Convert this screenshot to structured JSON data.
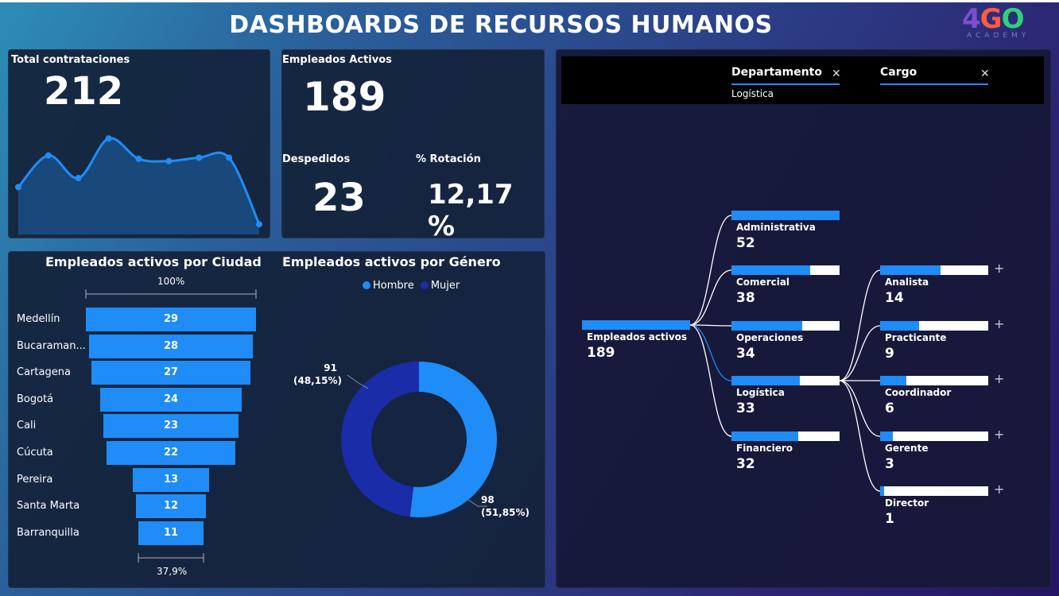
{
  "header": {
    "title": "DASHBOARDS DE RECURSOS HUMANOS",
    "logo_text": "4GO",
    "logo_sub": "ACADEMY"
  },
  "kpi_hires": {
    "label": "Total contrataciones",
    "value": "212"
  },
  "kpi_active": {
    "label": "Empleados Activos",
    "value": "189"
  },
  "kpi_fired": {
    "label": "Despedidos",
    "value": "23"
  },
  "kpi_rotation": {
    "label": "% Rotación",
    "value": "12,17 %"
  },
  "city_chart": {
    "title": "Empleados activos por Ciudad",
    "top_pct": "100%",
    "bottom_pct": "37,9%"
  },
  "gender_chart": {
    "title": "Empleados activos por Género",
    "legend": [
      "Hombre",
      "Mujer"
    ],
    "label_mujer_value": "91",
    "label_mujer_pct": "(48,15%)",
    "label_hombre_value": "98",
    "label_hombre_pct": "(51,85%)"
  },
  "filters": {
    "departamento": {
      "name": "Departamento",
      "value": "Logística"
    },
    "cargo": {
      "name": "Cargo"
    }
  },
  "tree": {
    "root": {
      "name": "Empleados activos",
      "value": "189"
    },
    "departments": [
      {
        "name": "Administrativa",
        "value": "52"
      },
      {
        "name": "Comercial",
        "value": "38"
      },
      {
        "name": "Operaciones",
        "value": "34"
      },
      {
        "name": "Logística",
        "value": "33"
      },
      {
        "name": "Financiero",
        "value": "32"
      }
    ],
    "roles": [
      {
        "name": "Analista",
        "value": "14"
      },
      {
        "name": "Practicante",
        "value": "9"
      },
      {
        "name": "Coordinador",
        "value": "6"
      },
      {
        "name": "Gerente",
        "value": "3"
      },
      {
        "name": "Director",
        "value": "1"
      }
    ]
  },
  "colors": {
    "accent": "#1f8cf8",
    "dark_blue": "#1a2ca8",
    "card_bg": "#14223a"
  },
  "chart_data": [
    {
      "type": "area",
      "x": [
        1,
        2,
        3,
        4,
        5,
        6,
        7,
        8,
        9
      ],
      "values": [
        0.42,
        0.7,
        0.5,
        0.85,
        0.67,
        0.65,
        0.68,
        0.68,
        0.09
      ],
      "title": "",
      "xlabel": "",
      "ylabel": ""
    },
    {
      "type": "bar",
      "title": "Empleados activos por Ciudad",
      "categories": [
        "Medellín",
        "Bucaraman...",
        "Cartagena",
        "Bogotá",
        "Cali",
        "Cúcuta",
        "Pereira",
        "Santa Marta",
        "Barranquilla"
      ],
      "values": [
        29,
        28,
        27,
        24,
        23,
        22,
        13,
        12,
        11
      ],
      "xlabel": "",
      "ylabel": ""
    },
    {
      "type": "pie",
      "title": "Empleados activos por Género",
      "categories": [
        "Hombre",
        "Mujer"
      ],
      "values": [
        98,
        91
      ],
      "percent": [
        51.85,
        48.15
      ]
    }
  ]
}
